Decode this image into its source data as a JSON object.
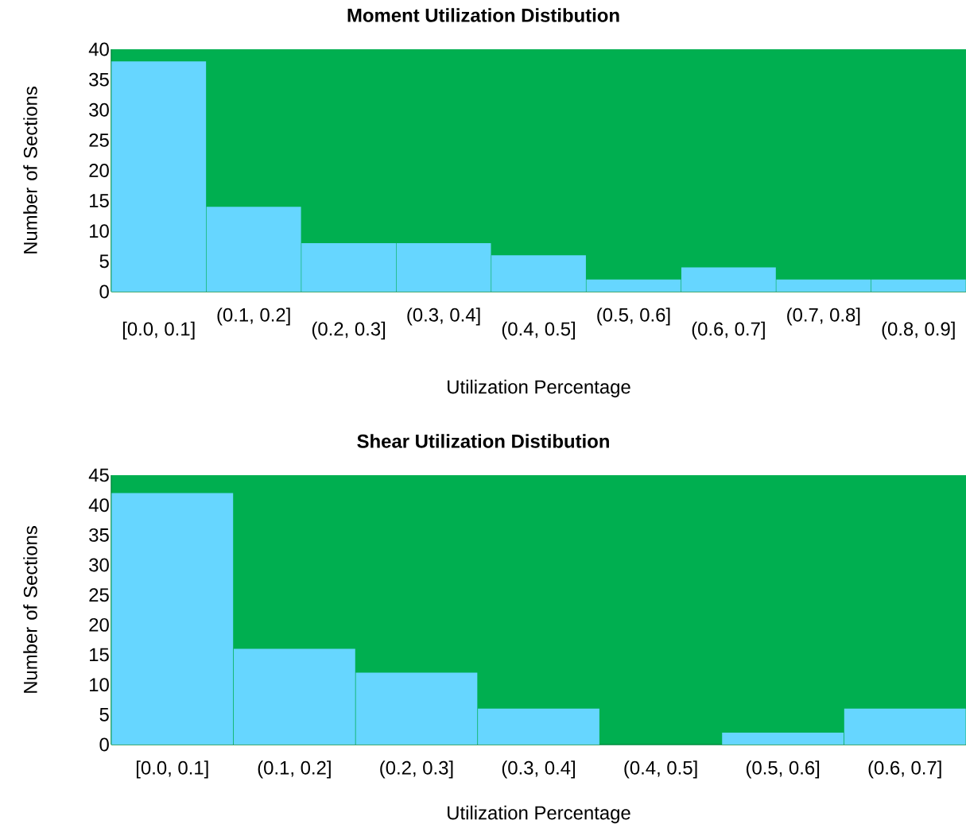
{
  "chart_data": [
    {
      "type": "bar",
      "title": "Moment Utilization Distibution",
      "xlabel": "Utilization Percentage",
      "ylabel": "Number of Sections",
      "categories": [
        "[0.0, 0.1]",
        "(0.1, 0.2]",
        "(0.2, 0.3]",
        "(0.3, 0.4]",
        "(0.4, 0.5]",
        "(0.5, 0.6]",
        "(0.6, 0.7]",
        "(0.7, 0.8]",
        "(0.8, 0.9]"
      ],
      "values": [
        38,
        14,
        8,
        8,
        6,
        2,
        4,
        2,
        2
      ],
      "color": "#66d6ff",
      "ylim": [
        0,
        40
      ],
      "yticks": [
        0,
        5,
        10,
        15,
        20,
        25,
        30,
        35,
        40
      ],
      "grid": false
    },
    {
      "type": "bar",
      "title": "Shear Utilization Distibution",
      "xlabel": "Utilization Percentage",
      "ylabel": "Number of Sections",
      "categories": [
        "[0.0, 0.1]",
        "(0.1, 0.2]",
        "(0.2, 0.3]",
        "(0.3, 0.4]",
        "(0.4, 0.5]",
        "(0.5, 0.6]",
        "(0.6, 0.7]"
      ],
      "values": [
        42,
        16,
        12,
        6,
        0,
        2,
        6
      ],
      "color": "#66d6ff",
      "ylim": [
        0,
        45
      ],
      "yticks": [
        0,
        5,
        10,
        15,
        20,
        25,
        30,
        35,
        40,
        45
      ],
      "grid": false
    }
  ]
}
